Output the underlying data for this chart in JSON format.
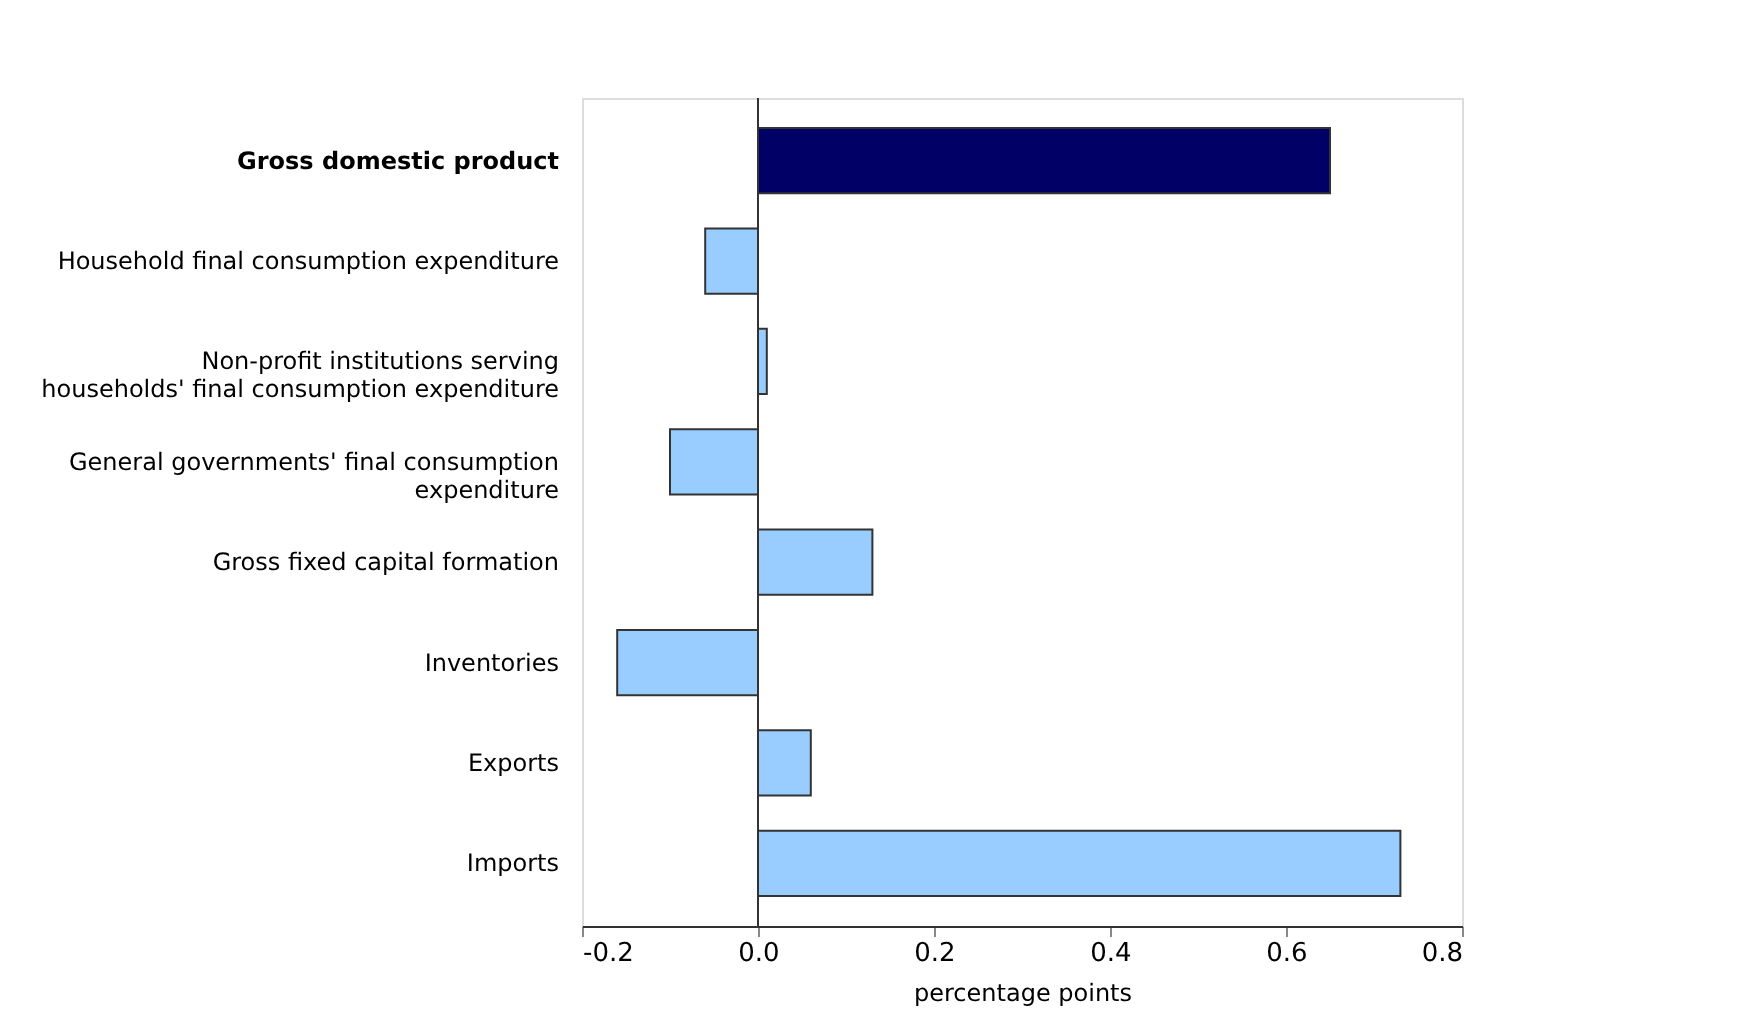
{
  "chart_data": {
    "type": "bar",
    "orientation": "horizontal",
    "categories": [
      "Gross domestic product",
      "Household final consumption expenditure",
      "Non-profit institutions serving\nhouseholds' final consumption expenditure",
      "General governments' final consumption\nexpenditure",
      "Gross fixed capital formation",
      "Inventories",
      "Exports",
      "Imports"
    ],
    "values": [
      0.65,
      -0.06,
      0.01,
      -0.1,
      0.13,
      -0.16,
      0.06,
      0.73
    ],
    "colors": [
      "#000066",
      "#99ccff",
      "#99ccff",
      "#99ccff",
      "#99ccff",
      "#99ccff",
      "#99ccff",
      "#99ccff"
    ],
    "xlim": [
      -0.2,
      0.8
    ],
    "xticks": [
      {
        "value": -0.2,
        "label": "-0.2"
      },
      {
        "value": 0,
        "label": "0.0"
      },
      {
        "value": 0.2,
        "label": "0.2"
      },
      {
        "value": 0.4,
        "label": "0.4"
      },
      {
        "value": 0.6,
        "label": "0.6"
      },
      {
        "value": 0.8,
        "label": "0.8"
      }
    ],
    "xlabel": "percentage points",
    "grid": false,
    "ref_lines": [
      {
        "axis": "x",
        "value": 0,
        "color": "#333333"
      }
    ]
  }
}
